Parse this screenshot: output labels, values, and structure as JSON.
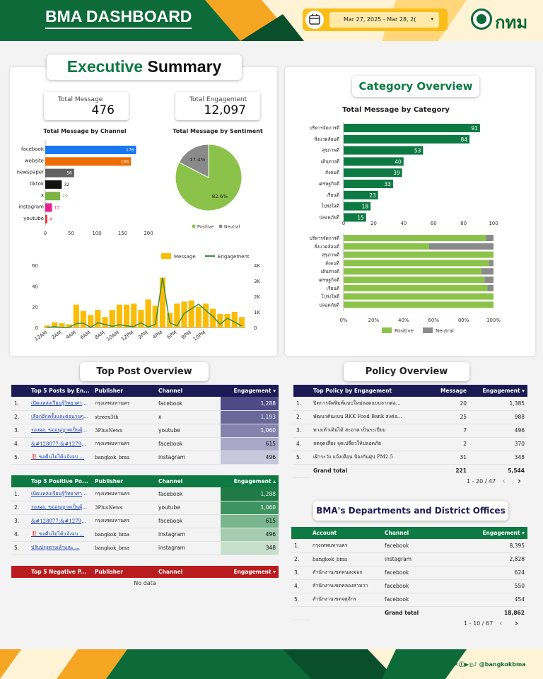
{
  "header": {
    "title": "BMA DASHBOARD",
    "date_range": "Mar 27, 2025 - Mar 28, 2(",
    "logo_text": "กทม"
  },
  "executive": {
    "title_a": "Executive",
    "title_b": "Summary",
    "total_message_label": "Total Message",
    "total_message": "476",
    "total_engagement_label": "Total Engagement",
    "total_engagement": "12,097"
  },
  "colors": {
    "green": "#0d7a43",
    "navy": "#1c1a55",
    "red": "#b81c1f",
    "facebook": "#1877f2",
    "website": "#ef6c00",
    "newspaper": "#616161",
    "tiktok": "#111111",
    "x": "#7cb342",
    "instagram": "#e91e8c",
    "youtube": "#e53935",
    "positive": "#8bc34a",
    "neutral": "#8a8a8a",
    "bar": "#fbbc05",
    "line": "#388e3c"
  },
  "chart_data": [
    {
      "type": "bar",
      "title": "Total Message by Channel",
      "categories": [
        "facebook",
        "website",
        "newspaper",
        "tiktok",
        "x",
        "instagram",
        "youtube"
      ],
      "values": [
        176,
        166,
        56,
        32,
        29,
        13,
        4
      ],
      "xlim": [
        0,
        200
      ],
      "xticks": [
        0,
        50,
        100,
        150,
        200
      ]
    },
    {
      "type": "pie",
      "title": "Total Message by Sentiment",
      "labels": [
        "Positive",
        "Neutral"
      ],
      "values": [
        82.6,
        17.4
      ],
      "value_labels": [
        "82.6%",
        "17.4%"
      ]
    },
    {
      "type": "bar",
      "subtype": "combo",
      "series": [
        {
          "name": "Message",
          "values": [
            2,
            5,
            4,
            3,
            22,
            16,
            12,
            17,
            10,
            17,
            22,
            22,
            23,
            17,
            27,
            21,
            48,
            14,
            23,
            25,
            26,
            20,
            23,
            18,
            13,
            13,
            15,
            10
          ]
        },
        {
          "name": "Engagement",
          "values": [
            0,
            50,
            0,
            0,
            250,
            280,
            0,
            300,
            200,
            70,
            180,
            100,
            60,
            300,
            30,
            200,
            3200,
            300,
            100,
            900,
            1200,
            1500,
            1100,
            700,
            200,
            600,
            350,
            100
          ]
        }
      ],
      "xticks": [
        "12AM",
        "2AM",
        "4AM",
        "6AM",
        "8AM",
        "10AM",
        "12PM",
        "2PM",
        "4PM",
        "6PM",
        "8PM",
        "10PM"
      ],
      "ylim_left": [
        0,
        60
      ],
      "yticks_left": [
        0,
        20,
        40,
        60
      ],
      "ylim_right": [
        0,
        4000
      ],
      "yticks_right": [
        "0",
        "1K",
        "2K",
        "3K",
        "4K"
      ]
    },
    {
      "type": "bar",
      "title": "Total Message by Category",
      "categories": [
        "บริหารจัดการดี",
        "สิ่งแวดล้อมดี",
        "สุขภาพดี",
        "เดินทางดี",
        "สังคมดี",
        "เศรษฐกิจดี",
        "เรียนดี",
        "โปร่งใสดี",
        "ปลอดภัยดี"
      ],
      "values": [
        91,
        84,
        53,
        40,
        39,
        33,
        23,
        18,
        15
      ],
      "xlim": [
        0,
        100
      ],
      "xticks": [
        0,
        20,
        40,
        60,
        80,
        100
      ]
    },
    {
      "type": "bar",
      "subtype": "stacked-percent",
      "categories": [
        "บริหารจัดการดี",
        "สิ่งแวดล้อมดี",
        "สุขภาพดี",
        "สังคมดี",
        "เดินทางดี",
        "เศรษฐกิจดี",
        "เรียนดี",
        "โปร่งใสดี",
        "ปลอดภัยดี"
      ],
      "series": [
        {
          "name": "Positive",
          "values": [
            95,
            57,
            100,
            97,
            92,
            94,
            96,
            100,
            100
          ]
        },
        {
          "name": "Neutral",
          "values": [
            5,
            43,
            0,
            3,
            8,
            6,
            4,
            0,
            0
          ]
        }
      ],
      "xticks": [
        "0%",
        "20%",
        "40%",
        "60%",
        "80%",
        "100%"
      ]
    }
  ],
  "category": {
    "title": "Category Overview"
  },
  "top_post": {
    "title": "Top Post Overview",
    "all": {
      "headers": [
        "Top 5 Posts by En...",
        "Publisher",
        "Channel",
        "Engagement ▾"
      ],
      "rows": [
        [
          "1.",
          "เปิดแหล่งเรียนรู้วิทยาศาสตร์ ...",
          "กรุงเทพมหานคร",
          "facebook",
          "1,288",
          1288
        ],
        [
          "2.",
          "เลือกอีกครั้งและต่อนานๆ ...",
          "streex3th",
          "x",
          "1,193",
          1193
        ],
        [
          "3.",
          "รองผอ. ขออนุญาตเป็นผู้แทน ...",
          "3PlusNews",
          "youtube",
          "1,060",
          1060
        ],
        [
          "4.",
          "&#128077;&#12799...",
          "กรุงเทพมหานคร",
          "facebook",
          "615",
          615
        ],
        [
          "5.",
          "‼️ ขอคืนไม่ได้แจ้งจบ ...",
          "bangkok_bma",
          "instagram",
          "496",
          496
        ]
      ]
    },
    "positive": {
      "headers": [
        "Top 5 Positive Po...",
        "Publisher",
        "Channel",
        "Engagement ▴"
      ],
      "rows": [
        [
          "1.",
          "เปิดแหล่งเรียนรู้วิทยาศาสตร์ ...",
          "กรุงเทพมหานคร",
          "facebook",
          "1,288",
          1288
        ],
        [
          "2.",
          "รองผอ. ขออนุญาตเป็นผู้แทน ...",
          "3PlusNews",
          "youtube",
          "1,060",
          1060
        ],
        [
          "3.",
          "&#128077;&#12799...",
          "กรุงเทพมหานคร",
          "facebook",
          "615",
          615
        ],
        [
          "4.",
          "‼️ ขอคืนไม่ได้แจ้งจบ ...",
          "bangkok_bma",
          "instagram",
          "496",
          496
        ],
        [
          "5.",
          "ปรับปรุงทางเท้าและ ...",
          "bangkok_bma",
          "instagram",
          "348",
          348
        ]
      ]
    },
    "negative": {
      "headers": [
        "Top 5 Negative P...",
        "Publisher",
        "Channel",
        "Engagement ▾"
      ],
      "empty": "No data"
    }
  },
  "policy": {
    "title": "Policy Overview",
    "headers": [
      "Top Policy by Engagement",
      "Message",
      "Engagement ▾"
    ],
    "rows": [
      [
        "1.",
        "ปิดการจัดพิมพ์แบบใหม่ถอดแบบจากต่อ...",
        "20",
        "1,385"
      ],
      [
        "2.",
        "พัฒนาต้นแบบ BKK Food Bank ส่งต่อ...",
        "25",
        "988"
      ],
      [
        "3.",
        "ทางเท้าเดินได้ สะอาด เป็นระเบียบ",
        "7",
        "496"
      ],
      [
        "4.",
        "ลดจุดเสี่ยง จุดเปลี่ยวให้ปลอดภัย",
        "2",
        "370"
      ],
      [
        "5.",
        "เฝ้าระวัง แจ้งเตือน ป้องกันฝุ่น PM2.5",
        "31",
        "348"
      ]
    ],
    "total_label": "Grand total",
    "total_message": "221",
    "total_engagement": "5,544",
    "pager": "1 - 20 / 47"
  },
  "departments": {
    "title": "BMA's Departments and District Offices",
    "headers": [
      "Account",
      "Channel",
      "Engagement ▾"
    ],
    "rows": [
      [
        "1.",
        "กรุงเทพมหานคร",
        "facebook",
        "8,395"
      ],
      [
        "2.",
        "bangkok_bma",
        "instagram",
        "2,828"
      ],
      [
        "3.",
        "สำนักงานเขตหนองจอก",
        "facebook",
        "624"
      ],
      [
        "4.",
        "สำนักงานเขตคลองสามวา",
        "facebook",
        "550"
      ],
      [
        "5.",
        "สำนักงานเขตจตุจักร",
        "facebook",
        "454"
      ]
    ],
    "total_label": "Grand total",
    "total_engagement": "18,862",
    "pager": "1 - 10 / 67"
  },
  "footer": {
    "handle": "@bangkokbma"
  }
}
